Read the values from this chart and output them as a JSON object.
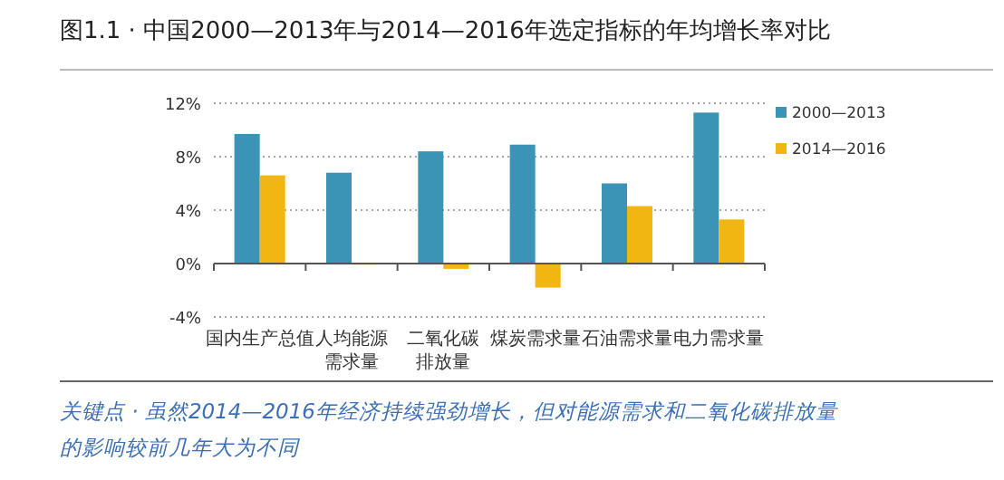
{
  "chart_data": {
    "type": "bar",
    "title": "图1.1 · 中国2000—2013年与2014—2016年选定指标的年均增长率对比",
    "categories": [
      "国内生产总值",
      "人均能源需求量",
      "二氧化碳排放量",
      "煤炭需求量",
      "石油需求量",
      "电力需求量"
    ],
    "series": [
      {
        "name": "2000—2013",
        "color": "#3b94b5",
        "values": [
          9.7,
          6.8,
          8.4,
          8.9,
          6.0,
          11.3
        ]
      },
      {
        "name": "2014—2016",
        "color": "#f1b612",
        "values": [
          6.6,
          0.0,
          -0.4,
          -1.8,
          4.3,
          3.3
        ]
      }
    ],
    "ylim": [
      -4,
      12
    ],
    "yticks": [
      {
        "value": -4,
        "label": "-4%"
      },
      {
        "value": 0,
        "label": "0%"
      },
      {
        "value": 4,
        "label": "4%"
      },
      {
        "value": 8,
        "label": "8%"
      },
      {
        "value": 12,
        "label": "12%"
      }
    ],
    "grid": "y",
    "legend": "right",
    "annotations": [
      "关键点 · 虽然2014—2016年经济持续强劲增长，但对能源需求和二氧化碳排放量的影响较前几年大为不同"
    ]
  }
}
